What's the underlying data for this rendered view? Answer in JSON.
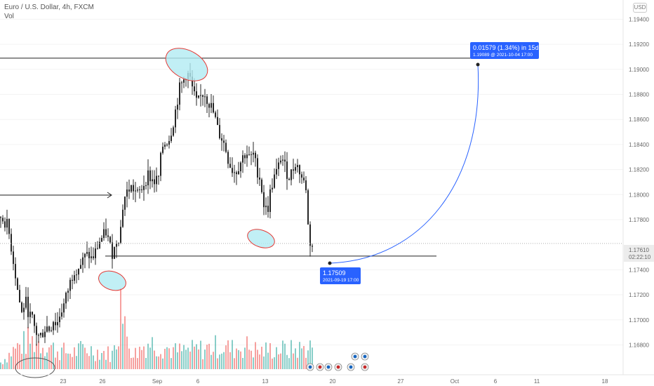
{
  "header": {
    "symbol_line": "Euro / U.S. Dollar, 4h, FXCM",
    "volume_label": "Vol",
    "currency": "USD"
  },
  "chart_data": {
    "type": "candlestick",
    "y_ticks": [
      "1.19400",
      "1.19200",
      "1.19000",
      "1.18800",
      "1.18600",
      "1.18400",
      "1.18200",
      "1.18000",
      "1.17800",
      "1.17400",
      "1.17200",
      "1.17000",
      "1.16800"
    ],
    "ylim": [
      1.1664,
      1.1952
    ],
    "x_ticks": [
      "23",
      "26",
      "Sep",
      "6",
      "13",
      "20",
      "27",
      "Oct",
      "6",
      "11",
      "18"
    ],
    "current_price": "1.17610",
    "countdown": "02:22:10",
    "resistance_level": 1.19089,
    "support_level": 1.17509,
    "projection": {
      "line1": "0.01579 (1.34%) in 15d",
      "line2": "1.19089 @ 2021-10-04  17:00"
    },
    "support_label": {
      "price": "1.17509",
      "date": "2021-09-19 17:00"
    },
    "colors": {
      "up": "#26a69a",
      "down": "#ef5350",
      "candle": "#262626",
      "projection": "#2962ff",
      "ellipse_fill": "#b2ebf2",
      "ellipse_stroke": "#e53935"
    },
    "candle_anchors": [
      [
        0,
        1.1782
      ],
      [
        5,
        1.1779
      ],
      [
        10,
        1.1775
      ],
      [
        15,
        1.1758
      ],
      [
        20,
        1.174
      ],
      [
        25,
        1.172
      ],
      [
        30,
        1.1705
      ],
      [
        35,
        1.1716
      ],
      [
        40,
        1.1705
      ],
      [
        45,
        1.17
      ],
      [
        50,
        1.169
      ],
      [
        55,
        1.1686
      ],
      [
        60,
        1.169
      ],
      [
        65,
        1.1695
      ],
      [
        70,
        1.1692
      ],
      [
        75,
        1.17
      ],
      [
        80,
        1.1696
      ],
      [
        85,
        1.1706
      ],
      [
        90,
        1.1712
      ],
      [
        95,
        1.1722
      ],
      [
        100,
        1.1732
      ],
      [
        105,
        1.174
      ],
      [
        110,
        1.1742
      ],
      [
        115,
        1.1745
      ],
      [
        120,
        1.175
      ],
      [
        125,
        1.1752
      ],
      [
        130,
        1.1748
      ],
      [
        135,
        1.1754
      ],
      [
        140,
        1.1762
      ],
      [
        145,
        1.1766
      ],
      [
        150,
        1.177
      ],
      [
        155,
        1.176
      ],
      [
        160,
        1.1752
      ],
      [
        165,
        1.1764
      ],
      [
        170,
        1.1768
      ],
      [
        175,
        1.1796
      ],
      [
        180,
        1.1802
      ],
      [
        185,
        1.1806
      ],
      [
        190,
        1.1804
      ],
      [
        195,
        1.18
      ],
      [
        200,
        1.1804
      ],
      [
        205,
        1.181
      ],
      [
        210,
        1.1816
      ],
      [
        215,
        1.1812
      ],
      [
        220,
        1.181
      ],
      [
        225,
        1.1814
      ],
      [
        230,
        1.1838
      ],
      [
        235,
        1.1842
      ],
      [
        240,
        1.1845
      ],
      [
        245,
        1.1855
      ],
      [
        250,
        1.187
      ],
      [
        255,
        1.1885
      ],
      [
        260,
        1.189
      ],
      [
        265,
        1.1898
      ],
      [
        270,
        1.1892
      ],
      [
        275,
        1.188
      ],
      [
        280,
        1.1872
      ],
      [
        285,
        1.1878
      ],
      [
        290,
        1.1882
      ],
      [
        295,
        1.1875
      ],
      [
        300,
        1.187
      ],
      [
        305,
        1.1862
      ],
      [
        310,
        1.185
      ],
      [
        315,
        1.1845
      ],
      [
        320,
        1.1838
      ],
      [
        325,
        1.1826
      ],
      [
        330,
        1.182
      ],
      [
        335,
        1.1818
      ],
      [
        340,
        1.1824
      ],
      [
        345,
        1.183
      ],
      [
        350,
        1.1834
      ],
      [
        355,
        1.1828
      ],
      [
        360,
        1.1832
      ],
      [
        365,
        1.182
      ],
      [
        370,
        1.1812
      ],
      [
        375,
        1.1792
      ],
      [
        380,
        1.1786
      ],
      [
        385,
        1.1805
      ],
      [
        390,
        1.1814
      ],
      [
        395,
        1.182
      ],
      [
        400,
        1.1832
      ],
      [
        405,
        1.1822
      ],
      [
        410,
        1.1814
      ],
      [
        415,
        1.1818
      ],
      [
        420,
        1.1826
      ],
      [
        425,
        1.182
      ],
      [
        430,
        1.1812
      ],
      [
        435,
        1.1806
      ],
      [
        438,
        1.1775
      ],
      [
        441,
        1.1762
      ],
      [
        444,
        1.1759
      ]
    ],
    "volume_anchors": [
      [
        0,
        0.1
      ],
      [
        20,
        0.3
      ],
      [
        40,
        0.42
      ],
      [
        60,
        0.38
      ],
      [
        80,
        0.28
      ],
      [
        100,
        0.24
      ],
      [
        120,
        0.3
      ],
      [
        140,
        0.26
      ],
      [
        160,
        0.22
      ],
      [
        172,
        0.7
      ],
      [
        190,
        0.22
      ],
      [
        210,
        0.4
      ],
      [
        230,
        0.34
      ],
      [
        250,
        0.26
      ],
      [
        270,
        0.28
      ],
      [
        290,
        0.3
      ],
      [
        310,
        0.34
      ],
      [
        330,
        0.3
      ],
      [
        350,
        0.34
      ],
      [
        370,
        0.26
      ],
      [
        390,
        0.3
      ],
      [
        410,
        0.28
      ],
      [
        430,
        0.3
      ],
      [
        444,
        0.34
      ]
    ]
  }
}
